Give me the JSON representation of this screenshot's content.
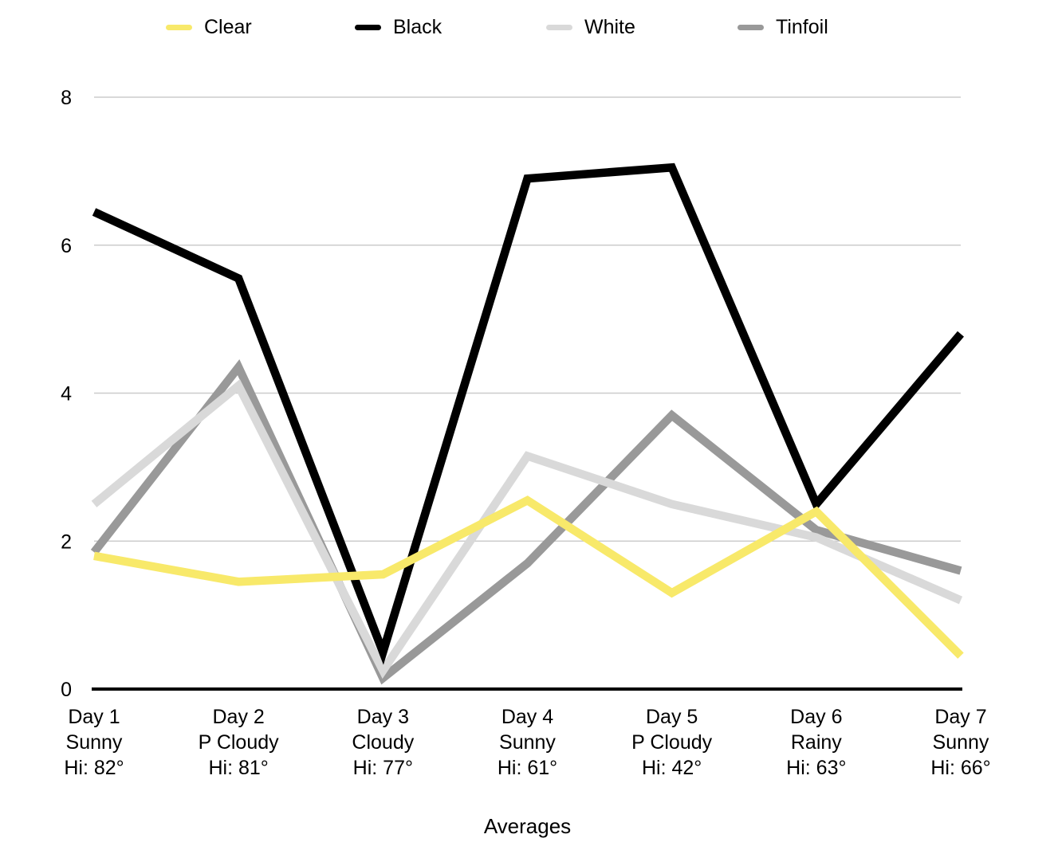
{
  "page": {
    "background": "#ffffff"
  },
  "chart_data": {
    "type": "line",
    "title": "",
    "xlabel": "Averages",
    "ylabel": "",
    "ylim": [
      0,
      8
    ],
    "yticks": [
      0,
      2,
      4,
      6,
      8
    ],
    "grid": true,
    "legend_position": "top",
    "categories": [
      {
        "day": "Day 1",
        "weather": "Sunny",
        "hi": "Hi: 82°"
      },
      {
        "day": "Day 2",
        "weather": "P Cloudy",
        "hi": "Hi: 81°"
      },
      {
        "day": "Day 3",
        "weather": "Cloudy",
        "hi": "Hi: 77°"
      },
      {
        "day": "Day 4",
        "weather": "Sunny",
        "hi": "Hi: 61°"
      },
      {
        "day": "Day 5",
        "weather": "P Cloudy",
        "hi": "Hi: 42°"
      },
      {
        "day": "Day 6",
        "weather": "Rainy",
        "hi": "Hi: 63°"
      },
      {
        "day": "Day 7",
        "weather": "Sunny",
        "hi": "Hi: 66°"
      }
    ],
    "series": [
      {
        "name": "Clear",
        "color": "#f8e96a",
        "values": [
          1.8,
          1.45,
          1.55,
          2.55,
          1.3,
          2.4,
          0.45
        ]
      },
      {
        "name": "Black",
        "color": "#000000",
        "values": [
          6.45,
          5.55,
          0.5,
          6.9,
          7.05,
          2.5,
          4.8
        ]
      },
      {
        "name": "White",
        "color": "#d9d9d9",
        "values": [
          2.5,
          4.1,
          0.25,
          3.15,
          2.5,
          2.05,
          1.2
        ]
      },
      {
        "name": "Tinfoil",
        "color": "#999999",
        "values": [
          1.85,
          4.35,
          0.15,
          1.7,
          3.7,
          2.15,
          1.6
        ]
      }
    ],
    "draw_order": [
      "Tinfoil",
      "White",
      "Black",
      "Clear"
    ]
  },
  "colors": {
    "gridline": "#cccccc",
    "axis_line": "#000000",
    "text": "#000000"
  }
}
